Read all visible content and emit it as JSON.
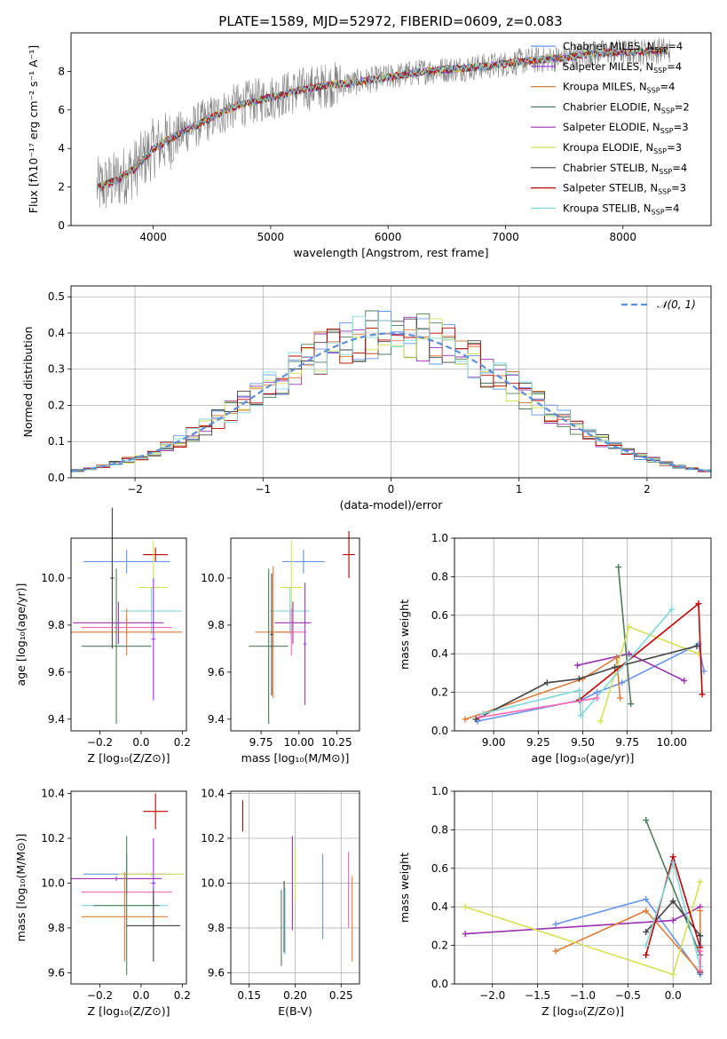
{
  "figure": {
    "title": "PLATE=1589, MJD=52972, FIBERID=0609, z=0.083"
  },
  "chart_data": [
    {
      "id": "spectrum",
      "type": "line",
      "title": "PLATE=1589, MJD=52972, FIBERID=0609, z=0.083",
      "xlabel": "wavelength [Angstrom, rest frame]",
      "ylabel": "Flux [fλ10⁻¹⁷ erg cm⁻² s⁻¹ A⁻¹]",
      "xlim": [
        3300,
        8750
      ],
      "ylim": [
        0,
        10
      ],
      "xticks": [
        4000,
        5000,
        6000,
        7000,
        8000
      ],
      "yticks": [
        0,
        2,
        4,
        6,
        8
      ],
      "grid": false,
      "legend_position": "top-right",
      "data_x": [
        3550,
        3700,
        3850,
        4000,
        4150,
        4300,
        4500,
        4700,
        4900,
        5100,
        5300,
        5500,
        5700,
        5900,
        6100,
        6300,
        6500,
        6700,
        6900,
        7100,
        7300,
        7500,
        7700,
        7900,
        8100,
        8300
      ],
      "data_flux": [
        2.0,
        2.4,
        3.0,
        4.0,
        4.5,
        5.0,
        5.6,
        6.2,
        6.5,
        6.8,
        7.1,
        7.3,
        7.4,
        7.6,
        7.8,
        8.0,
        8.1,
        8.2,
        8.3,
        8.5,
        8.6,
        8.7,
        8.9,
        9.0,
        9.0,
        9.1
      ],
      "series": [
        {
          "name": "Chabrier MILES, N",
          "sub": "SSP",
          "tail": "=4",
          "color": "#6495ED"
        },
        {
          "name": "Salpeter MILES, N",
          "sub": "SSP",
          "tail": "=4",
          "color": "#9B30FF"
        },
        {
          "name": "Kroupa MILES, N",
          "sub": "SSP",
          "tail": "=4",
          "color": "#E07B39"
        },
        {
          "name": "Chabrier ELODIE, N",
          "sub": "SSP",
          "tail": "=2",
          "color": "#4E7D5B"
        },
        {
          "name": "Salpeter ELODIE, N",
          "sub": "SSP",
          "tail": "=3",
          "color": "#9B30B0"
        },
        {
          "name": "Kroupa ELODIE, N",
          "sub": "SSP",
          "tail": "=3",
          "color": "#D4E157"
        },
        {
          "name": "Chabrier STELIB, N",
          "sub": "SSP",
          "tail": "=4",
          "color": "#444444"
        },
        {
          "name": "Salpeter STELIB, N",
          "sub": "SSP",
          "tail": "=3",
          "color": "#C00000"
        },
        {
          "name": "Kroupa STELIB, N",
          "sub": "SSP",
          "tail": "=4",
          "color": "#80D8DC"
        }
      ]
    },
    {
      "id": "residuals",
      "type": "line",
      "xlabel": "(data-model)/error",
      "ylabel": "Normed distribution",
      "xlim": [
        -2.5,
        2.5
      ],
      "ylim": [
        0,
        0.53
      ],
      "xticks": [
        -2,
        -1,
        0,
        1,
        2
      ],
      "yticks": [
        0.0,
        0.1,
        0.2,
        0.3,
        0.4,
        0.5
      ],
      "grid": true,
      "legend_position": "top-right",
      "legend": [
        "𝒩(0, 1)"
      ],
      "gaussian_color": "#5B8FD9"
    },
    {
      "id": "age-vs-Z",
      "type": "scatter",
      "xlabel": "Z [log₁₀(Z/Z⊙)]",
      "ylabel": "age  [log₁₀(age/yr)]",
      "xlim": [
        -0.34,
        0.22
      ],
      "ylim": [
        9.35,
        10.17
      ],
      "xticks": [
        -0.2,
        0.0,
        0.2
      ],
      "yticks": [
        9.4,
        9.6,
        9.8,
        10.0
      ],
      "grid": false,
      "points": [
        {
          "x": 0.07,
          "y": 10.1,
          "xerr": 0.06,
          "yerr": 0.03,
          "color": "#C00000"
        },
        {
          "x": -0.07,
          "y": 10.07,
          "xerr": 0.21,
          "yerr": 0.05,
          "color": "#6495ED"
        },
        {
          "x": -0.14,
          "y": 10.0,
          "xerr": 0.01,
          "yerr": 0.3,
          "color": "#444444"
        },
        {
          "x": 0.06,
          "y": 9.96,
          "xerr": 0.07,
          "yerr": 0.2,
          "color": "#D4E157"
        },
        {
          "x": 0.05,
          "y": 9.86,
          "xerr": 0.15,
          "yerr": 0.1,
          "color": "#80D8DC"
        },
        {
          "x": -0.11,
          "y": 9.81,
          "xerr": 0.22,
          "yerr": 0.09,
          "color": "#9B30B0"
        },
        {
          "x": -0.07,
          "y": 9.79,
          "xerr": 0.22,
          "yerr": 0.04,
          "color": "#FF69B4"
        },
        {
          "x": -0.07,
          "y": 9.77,
          "xerr": 0.27,
          "yerr": 0.1,
          "color": "#E07B39"
        },
        {
          "x": -0.12,
          "y": 9.71,
          "xerr": 0.17,
          "yerr": 0.33,
          "color": "#4E7D5B"
        },
        {
          "x": 0.06,
          "y": 9.74,
          "xerr": 0.01,
          "yerr": 0.26,
          "color": "#9B30FF"
        }
      ]
    },
    {
      "id": "age-vs-mass",
      "type": "scatter",
      "xlabel": "mass [log₁₀(M/M⊙)]",
      "ylabel": "",
      "xlim": [
        9.55,
        10.4
      ],
      "ylim": [
        9.35,
        10.17
      ],
      "xticks": [
        9.75,
        10.0,
        10.25
      ],
      "yticks": [
        9.4,
        9.6,
        9.8,
        10.0
      ],
      "grid": false,
      "points": [
        {
          "x": 10.33,
          "y": 10.1,
          "xerr": 0.04,
          "yerr": 0.1,
          "color": "#C00000"
        },
        {
          "x": 10.03,
          "y": 10.07,
          "xerr": 0.14,
          "yerr": 0.05,
          "color": "#6495ED"
        },
        {
          "x": 9.95,
          "y": 9.96,
          "xerr": 0.07,
          "yerr": 0.2,
          "color": "#D4E157"
        },
        {
          "x": 9.94,
          "y": 9.86,
          "xerr": 0.13,
          "yerr": 0.1,
          "color": "#80D8DC"
        },
        {
          "x": 9.96,
          "y": 9.81,
          "xerr": 0.12,
          "yerr": 0.09,
          "color": "#9B30B0"
        },
        {
          "x": 9.95,
          "y": 9.77,
          "xerr": 0.1,
          "yerr": 0.1,
          "color": "#FF69B4"
        },
        {
          "x": 9.83,
          "y": 9.77,
          "xerr": 0.12,
          "yerr": 0.28,
          "color": "#E07B39"
        },
        {
          "x": 9.8,
          "y": 9.71,
          "xerr": 0.13,
          "yerr": 0.33,
          "color": "#4E7D5B"
        },
        {
          "x": 9.82,
          "y": 9.76,
          "xerr": 0.01,
          "yerr": 0.26,
          "color": "#444444"
        },
        {
          "x": 10.04,
          "y": 9.72,
          "xerr": 0.01,
          "yerr": 0.26,
          "color": "#9B30FF"
        }
      ]
    },
    {
      "id": "weight-vs-age",
      "type": "line",
      "xlabel": "age  [log₁₀(age/yr)]",
      "ylabel": "mass weight",
      "xlim": [
        8.78,
        10.22
      ],
      "ylim": [
        0,
        1
      ],
      "xticks": [
        9.0,
        9.25,
        9.5,
        9.75,
        10.0
      ],
      "yticks": [
        0.0,
        0.2,
        0.4,
        0.6,
        0.8,
        1.0
      ],
      "grid": true,
      "series": [
        {
          "color": "#6495ED",
          "x": [
            8.91,
            9.49,
            9.58,
            9.72,
            10.15,
            10.18
          ],
          "y": [
            0.05,
            0.16,
            0.2,
            0.25,
            0.45,
            0.31
          ]
        },
        {
          "color": "#9B30B0",
          "x": [
            9.47,
            9.76,
            10.07
          ],
          "y": [
            0.34,
            0.4,
            0.26
          ]
        },
        {
          "color": "#E07B39",
          "x": [
            8.84,
            9.5,
            9.69,
            9.71
          ],
          "y": [
            0.06,
            0.27,
            0.38,
            0.17
          ]
        },
        {
          "color": "#4E7D5B",
          "x": [
            9.7,
            9.77
          ],
          "y": [
            0.85,
            0.14
          ]
        },
        {
          "color": "#D4E157",
          "x": [
            9.6,
            9.76,
            10.15
          ],
          "y": [
            0.05,
            0.54,
            0.4
          ]
        },
        {
          "color": "#444444",
          "x": [
            8.9,
            9.3,
            9.48,
            9.68,
            10.14
          ],
          "y": [
            0.06,
            0.25,
            0.27,
            0.33,
            0.44
          ]
        },
        {
          "color": "#C00000",
          "x": [
            9.48,
            10.15,
            10.17
          ],
          "y": [
            0.16,
            0.66,
            0.19
          ]
        },
        {
          "color": "#80D8DC",
          "x": [
            8.94,
            9.48,
            9.49,
            10.0
          ],
          "y": [
            0.09,
            0.21,
            0.08,
            0.63
          ]
        },
        {
          "color": "#FF69B4",
          "x": [
            8.92,
            9.58
          ],
          "y": [
            0.07,
            0.17
          ]
        }
      ]
    },
    {
      "id": "mass-vs-Z",
      "type": "scatter",
      "xlabel": "Z [log₁₀(Z/Z⊙)]",
      "ylabel": "mass [log₁₀(M/M⊙)]",
      "xlim": [
        -0.34,
        0.22
      ],
      "ylim": [
        9.55,
        10.41
      ],
      "xticks": [
        -0.2,
        0.0,
        0.2
      ],
      "yticks": [
        9.6,
        9.8,
        10.0,
        10.2,
        10.4
      ],
      "grid": false,
      "points": [
        {
          "x": 0.07,
          "y": 10.32,
          "xerr": 0.06,
          "yerr": 0.08,
          "color": "#C00000"
        },
        {
          "x": -0.07,
          "y": 10.04,
          "xerr": 0.21,
          "yerr": 0.09,
          "color": "#6495ED"
        },
        {
          "x": 0.05,
          "y": 10.04,
          "xerr": 0.16,
          "yerr": 0.01,
          "color": "#D4E157"
        },
        {
          "x": 0.06,
          "y": 10.0,
          "xerr": 0.01,
          "yerr": 0.2,
          "color": "#9B30FF"
        },
        {
          "x": -0.12,
          "y": 10.02,
          "xerr": 0.22,
          "yerr": 0.01,
          "color": "#9B30B0"
        },
        {
          "x": -0.07,
          "y": 9.96,
          "xerr": 0.22,
          "yerr": 0.01,
          "color": "#FF69B4"
        },
        {
          "x": -0.08,
          "y": 9.9,
          "xerr": 0.21,
          "yerr": 0.01,
          "color": "#80D8DC"
        },
        {
          "x": -0.07,
          "y": 9.9,
          "xerr": 0.16,
          "yerr": 0.31,
          "color": "#4E7D5B"
        },
        {
          "x": -0.08,
          "y": 9.85,
          "xerr": 0.21,
          "yerr": 0.2,
          "color": "#E07B39"
        },
        {
          "x": 0.06,
          "y": 9.81,
          "xerr": 0.13,
          "yerr": 0.16,
          "color": "#444444"
        }
      ]
    },
    {
      "id": "mass-vs-EBV",
      "type": "scatter",
      "xlabel": "E(B-V)",
      "ylabel": "",
      "xlim": [
        0.13,
        0.27
      ],
      "ylim": [
        9.55,
        10.41
      ],
      "xticks": [
        0.15,
        0.2,
        0.25
      ],
      "yticks": [
        9.6,
        9.8,
        10.0,
        10.2,
        10.4
      ],
      "grid": true,
      "points": [
        {
          "x": 0.143,
          "y": 10.3,
          "xerr": 0,
          "yerr": 0.07,
          "color": "#C00000"
        },
        {
          "x": 0.185,
          "y": 9.8,
          "xerr": 0,
          "yerr": 0.17,
          "color": "#4E7D5B"
        },
        {
          "x": 0.188,
          "y": 9.85,
          "xerr": 0,
          "yerr": 0.16,
          "color": "#444444"
        },
        {
          "x": 0.189,
          "y": 9.83,
          "xerr": 0,
          "yerr": 0.15,
          "color": "#80D8DC"
        },
        {
          "x": 0.197,
          "y": 10.0,
          "xerr": 0,
          "yerr": 0.21,
          "color": "#9B30B0"
        },
        {
          "x": 0.2,
          "y": 10.04,
          "xerr": 0,
          "yerr": 0.12,
          "color": "#D4E157"
        },
        {
          "x": 0.23,
          "y": 9.94,
          "xerr": 0,
          "yerr": 0.19,
          "color": "#6495ED"
        },
        {
          "x": 0.258,
          "y": 9.97,
          "xerr": 0,
          "yerr": 0.17,
          "color": "#FF69B4"
        },
        {
          "x": 0.262,
          "y": 9.84,
          "xerr": 0,
          "yerr": 0.19,
          "color": "#E07B39"
        }
      ]
    },
    {
      "id": "weight-vs-Z",
      "type": "line",
      "xlabel": "Z [log₁₀(Z/Z⊙)]",
      "ylabel": "mass weight",
      "xlim": [
        -2.42,
        0.42
      ],
      "ylim": [
        0,
        1
      ],
      "xticks": [
        -2.0,
        -1.5,
        -1.0,
        -0.5,
        0.0
      ],
      "yticks": [
        0.0,
        0.2,
        0.4,
        0.6,
        0.8,
        1.0
      ],
      "grid": true,
      "series": [
        {
          "color": "#6495ED",
          "x": [
            -1.3,
            -0.3,
            0.3,
            0.3
          ],
          "y": [
            0.31,
            0.44,
            0.05,
            0.2
          ]
        },
        {
          "color": "#9B30B0",
          "x": [
            -2.3,
            0.0,
            0.3
          ],
          "y": [
            0.26,
            0.33,
            0.4
          ]
        },
        {
          "color": "#E07B39",
          "x": [
            -1.3,
            -0.3,
            0.3,
            0.3
          ],
          "y": [
            0.17,
            0.38,
            0.06,
            0.38
          ]
        },
        {
          "color": "#4E7D5B",
          "x": [
            -0.3,
            0.3
          ],
          "y": [
            0.85,
            0.15
          ]
        },
        {
          "color": "#D4E157",
          "x": [
            -2.3,
            0.0,
            0.3
          ],
          "y": [
            0.4,
            0.05,
            0.53
          ]
        },
        {
          "color": "#444444",
          "x": [
            -0.3,
            0.0,
            0.3,
            0.3
          ],
          "y": [
            0.27,
            0.43,
            0.25,
            0.06
          ]
        },
        {
          "color": "#C00000",
          "x": [
            -0.3,
            0.0,
            0.3
          ],
          "y": [
            0.15,
            0.66,
            0.19
          ]
        },
        {
          "color": "#80D8DC",
          "x": [
            -0.3,
            0.0,
            0.3
          ],
          "y": [
            0.2,
            0.63,
            0.09
          ]
        },
        {
          "color": "#FF69B4",
          "x": [
            0.3,
            0.3
          ],
          "y": [
            0.07,
            0.17
          ]
        }
      ]
    }
  ]
}
